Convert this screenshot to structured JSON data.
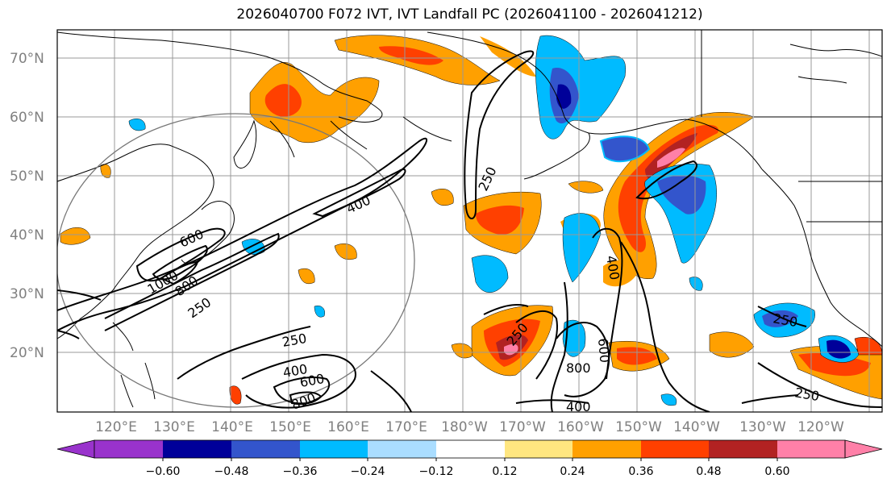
{
  "title": "2026040700 F072 IVT, IVT Landfall PC (2026041100 - 2026041212)",
  "map": {
    "lat_labels": [
      "70°N",
      "60°N",
      "50°N",
      "40°N",
      "30°N",
      "20°N"
    ],
    "lon_labels": [
      "120°E",
      "130°E",
      "140°E",
      "150°E",
      "160°E",
      "170°E",
      "180°W",
      "170°W",
      "160°W",
      "150°W",
      "140°W",
      "130°W",
      "120°W"
    ],
    "contour_labels": [
      "250",
      "400",
      "600",
      "800",
      "1000",
      "250",
      "400",
      "600",
      "800",
      "250",
      "400",
      "600",
      "800",
      "250",
      "400",
      "250",
      "250"
    ],
    "fill_colors": {
      "purple": "#9933cc",
      "navy": "#000099",
      "royal": "#3355cc",
      "sky": "#00bbff",
      "pale_blue": "#aaddff",
      "white": "#ffffff",
      "yellow": "#ffe680",
      "orange": "#ffa000",
      "red_orange": "#ff4000",
      "dark_red": "#b22222",
      "pink": "#ff80a8"
    }
  },
  "colorbar": {
    "ticks": [
      "−0.60",
      "−0.48",
      "−0.36",
      "−0.24",
      "−0.12",
      "0.12",
      "0.24",
      "0.36",
      "0.48",
      "0.60"
    ],
    "colors": [
      "#9933cc",
      "#000099",
      "#3355cc",
      "#00bbff",
      "#aaddff",
      "#ffffff",
      "#ffe680",
      "#ffa000",
      "#ff4000",
      "#b22222",
      "#ff80a8"
    ]
  }
}
